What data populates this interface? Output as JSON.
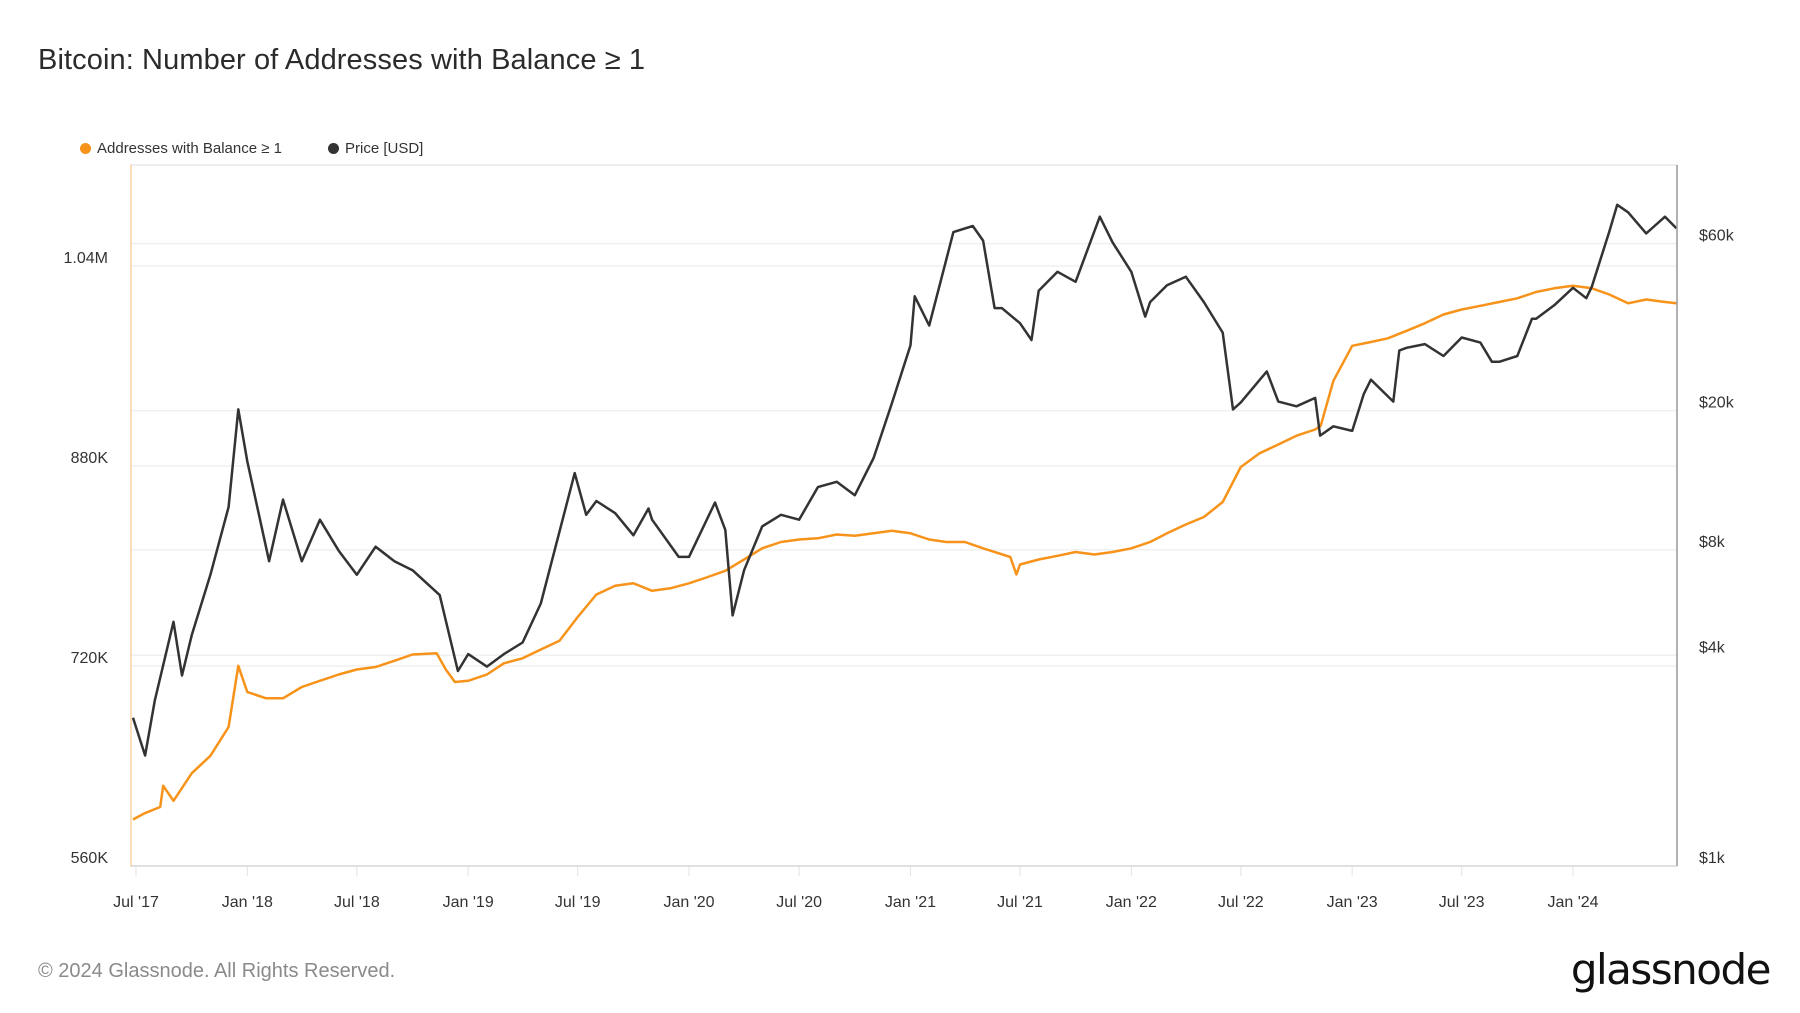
{
  "title": "Bitcoin: Number of Addresses with Balance ≥ 1",
  "footer": "© 2024 Glassnode. All Rights Reserved.",
  "logo": "glassnode",
  "chart_data": {
    "type": "line",
    "title": "Bitcoin: Number of Addresses with Balance ≥ 1",
    "legend_position": "top-left",
    "grid": true,
    "x_ticks": [
      "Jul '17",
      "Jan '18",
      "Jul '18",
      "Jan '19",
      "Jul '19",
      "Jan '20",
      "Jul '20",
      "Jan '21",
      "Jul '21",
      "Jan '22",
      "Jul '22",
      "Jan '23",
      "Jul '23",
      "Jan '24"
    ],
    "x_tick_dates": [
      "2017-07-01",
      "2018-01-01",
      "2018-07-01",
      "2019-01-01",
      "2019-07-01",
      "2020-01-01",
      "2020-07-01",
      "2021-01-01",
      "2021-07-01",
      "2022-01-01",
      "2022-07-01",
      "2023-01-01",
      "2023-07-01",
      "2024-01-01"
    ],
    "x_range": [
      "2017-06-26",
      "2024-06-20"
    ],
    "y_left": {
      "ticks": [
        560000,
        720000,
        880000,
        1040000
      ],
      "tick_labels": [
        "560K",
        "720K",
        "880K",
        "1.04M"
      ],
      "range": [
        553000,
        1113000
      ]
    },
    "y_right": {
      "scale": "log",
      "ticks": [
        1000,
        4000,
        8000,
        20000,
        60000
      ],
      "tick_labels": [
        "$1k",
        "$4k",
        "$8k",
        "$20k",
        "$60k"
      ],
      "range": [
        1000,
        80000
      ]
    },
    "series": [
      {
        "name": "Addresses with Balance ≥ 1",
        "axis": "left",
        "color": "#f7931a",
        "dates": [
          "2017-06-26",
          "2017-07-15",
          "2017-08-10",
          "2017-08-15",
          "2017-09-01",
          "2017-10-01",
          "2017-11-01",
          "2017-12-01",
          "2017-12-17",
          "2018-01-01",
          "2018-02-01",
          "2018-03-01",
          "2018-04-01",
          "2018-05-01",
          "2018-06-01",
          "2018-07-01",
          "2018-08-01",
          "2018-09-01",
          "2018-10-01",
          "2018-11-10",
          "2018-11-25",
          "2018-12-10",
          "2019-01-01",
          "2019-02-01",
          "2019-03-01",
          "2019-04-01",
          "2019-05-01",
          "2019-06-01",
          "2019-07-01",
          "2019-08-01",
          "2019-09-01",
          "2019-10-01",
          "2019-11-01",
          "2019-12-01",
          "2020-01-01",
          "2020-02-01",
          "2020-03-01",
          "2020-04-01",
          "2020-05-01",
          "2020-06-01",
          "2020-07-01",
          "2020-08-01",
          "2020-09-01",
          "2020-10-01",
          "2020-11-01",
          "2020-12-01",
          "2021-01-01",
          "2021-02-01",
          "2021-03-01",
          "2021-04-01",
          "2021-05-01",
          "2021-06-15",
          "2021-06-25",
          "2021-07-01",
          "2021-08-01",
          "2021-09-01",
          "2021-10-01",
          "2021-11-01",
          "2021-12-01",
          "2022-01-01",
          "2022-02-01",
          "2022-03-01",
          "2022-04-01",
          "2022-05-01",
          "2022-06-01",
          "2022-07-01",
          "2022-08-01",
          "2022-09-01",
          "2022-10-01",
          "2022-11-01",
          "2022-11-10",
          "2022-12-01",
          "2023-01-01",
          "2023-02-01",
          "2023-03-01",
          "2023-04-01",
          "2023-05-01",
          "2023-06-01",
          "2023-07-01",
          "2023-08-01",
          "2023-09-01",
          "2023-10-01",
          "2023-11-01",
          "2023-12-01",
          "2024-01-01",
          "2024-02-01",
          "2024-03-01",
          "2024-04-01",
          "2024-05-01",
          "2024-06-01",
          "2024-06-20"
        ],
        "values": [
          590000,
          595000,
          600000,
          617000,
          605000,
          627000,
          641000,
          664000,
          713000,
          692000,
          687000,
          687000,
          696000,
          701000,
          706000,
          710000,
          712000,
          717000,
          722000,
          723000,
          710000,
          700000,
          701000,
          706000,
          715000,
          719000,
          726000,
          733000,
          752000,
          770000,
          777000,
          779000,
          773000,
          775000,
          779000,
          784000,
          789000,
          798000,
          807000,
          812000,
          814000,
          815000,
          818000,
          817000,
          819000,
          821000,
          819000,
          814000,
          812000,
          812000,
          807000,
          800000,
          786000,
          794000,
          798000,
          801000,
          804000,
          802000,
          804000,
          807000,
          812000,
          819000,
          826000,
          832000,
          844000,
          872000,
          883000,
          890000,
          897000,
          902000,
          905000,
          941000,
          969000,
          972000,
          975000,
          981000,
          987000,
          994000,
          998000,
          1001000,
          1004000,
          1007000,
          1012000,
          1015000,
          1017000,
          1015000,
          1010000,
          1003000,
          1006000,
          1004000,
          1003000
        ]
      },
      {
        "name": "Price [USD]",
        "axis": "right",
        "color": "#333333",
        "dates": [
          "2017-06-26",
          "2017-07-16",
          "2017-08-01",
          "2017-09-01",
          "2017-09-15",
          "2017-10-01",
          "2017-11-01",
          "2017-12-01",
          "2017-12-17",
          "2018-01-01",
          "2018-02-06",
          "2018-03-01",
          "2018-04-01",
          "2018-05-01",
          "2018-06-01",
          "2018-07-01",
          "2018-08-01",
          "2018-09-01",
          "2018-10-01",
          "2018-11-15",
          "2018-12-15",
          "2019-01-01",
          "2019-02-01",
          "2019-03-01",
          "2019-04-01",
          "2019-05-01",
          "2019-06-26",
          "2019-07-15",
          "2019-08-01",
          "2019-09-01",
          "2019-10-01",
          "2019-10-26",
          "2019-11-01",
          "2019-12-15",
          "2020-01-01",
          "2020-02-13",
          "2020-03-01",
          "2020-03-13",
          "2020-04-01",
          "2020-05-01",
          "2020-06-01",
          "2020-07-01",
          "2020-08-01",
          "2020-09-01",
          "2020-10-01",
          "2020-11-01",
          "2020-12-01",
          "2021-01-01",
          "2021-01-08",
          "2021-02-01",
          "2021-03-13",
          "2021-04-14",
          "2021-05-01",
          "2021-05-20",
          "2021-06-01",
          "2021-07-01",
          "2021-07-20",
          "2021-08-01",
          "2021-09-01",
          "2021-10-01",
          "2021-11-10",
          "2021-12-01",
          "2022-01-01",
          "2022-01-24",
          "2022-02-01",
          "2022-03-01",
          "2022-04-01",
          "2022-05-01",
          "2022-06-01",
          "2022-06-18",
          "2022-07-01",
          "2022-08-13",
          "2022-09-01",
          "2022-10-01",
          "2022-11-01",
          "2022-11-09",
          "2022-12-01",
          "2023-01-01",
          "2023-01-20",
          "2023-02-01",
          "2023-03-10",
          "2023-03-20",
          "2023-04-01",
          "2023-05-01",
          "2023-06-01",
          "2023-07-01",
          "2023-08-01",
          "2023-08-20",
          "2023-09-01",
          "2023-10-01",
          "2023-10-25",
          "2023-11-01",
          "2023-12-01",
          "2024-01-01",
          "2024-01-23",
          "2024-02-01",
          "2024-03-01",
          "2024-03-14",
          "2024-04-01",
          "2024-05-01",
          "2024-06-01",
          "2024-06-20"
        ],
        "values": [
          2500,
          1950,
          2800,
          4700,
          3300,
          4300,
          6400,
          10000,
          19000,
          13500,
          7000,
          10500,
          7000,
          9200,
          7500,
          6400,
          7700,
          7000,
          6600,
          5600,
          3400,
          3800,
          3500,
          3800,
          4100,
          5300,
          12500,
          9500,
          10400,
          9600,
          8300,
          9900,
          9200,
          7200,
          7200,
          10300,
          8600,
          4900,
          6600,
          8800,
          9500,
          9200,
          11400,
          11800,
          10800,
          13800,
          19700,
          29000,
          40000,
          33000,
          61000,
          63500,
          57700,
          37000,
          37000,
          33500,
          30000,
          41500,
          47000,
          44000,
          67500,
          57000,
          47000,
          35000,
          38500,
          43000,
          45500,
          38500,
          31500,
          19000,
          19900,
          24400,
          20000,
          19400,
          20500,
          16000,
          17000,
          16500,
          21000,
          23100,
          20000,
          28000,
          28500,
          29200,
          27000,
          30500,
          29500,
          26000,
          26000,
          27000,
          34500,
          34500,
          37700,
          42300,
          39500,
          42600,
          61200,
          73000,
          69500,
          60500,
          67500,
          62500
        ]
      }
    ]
  }
}
